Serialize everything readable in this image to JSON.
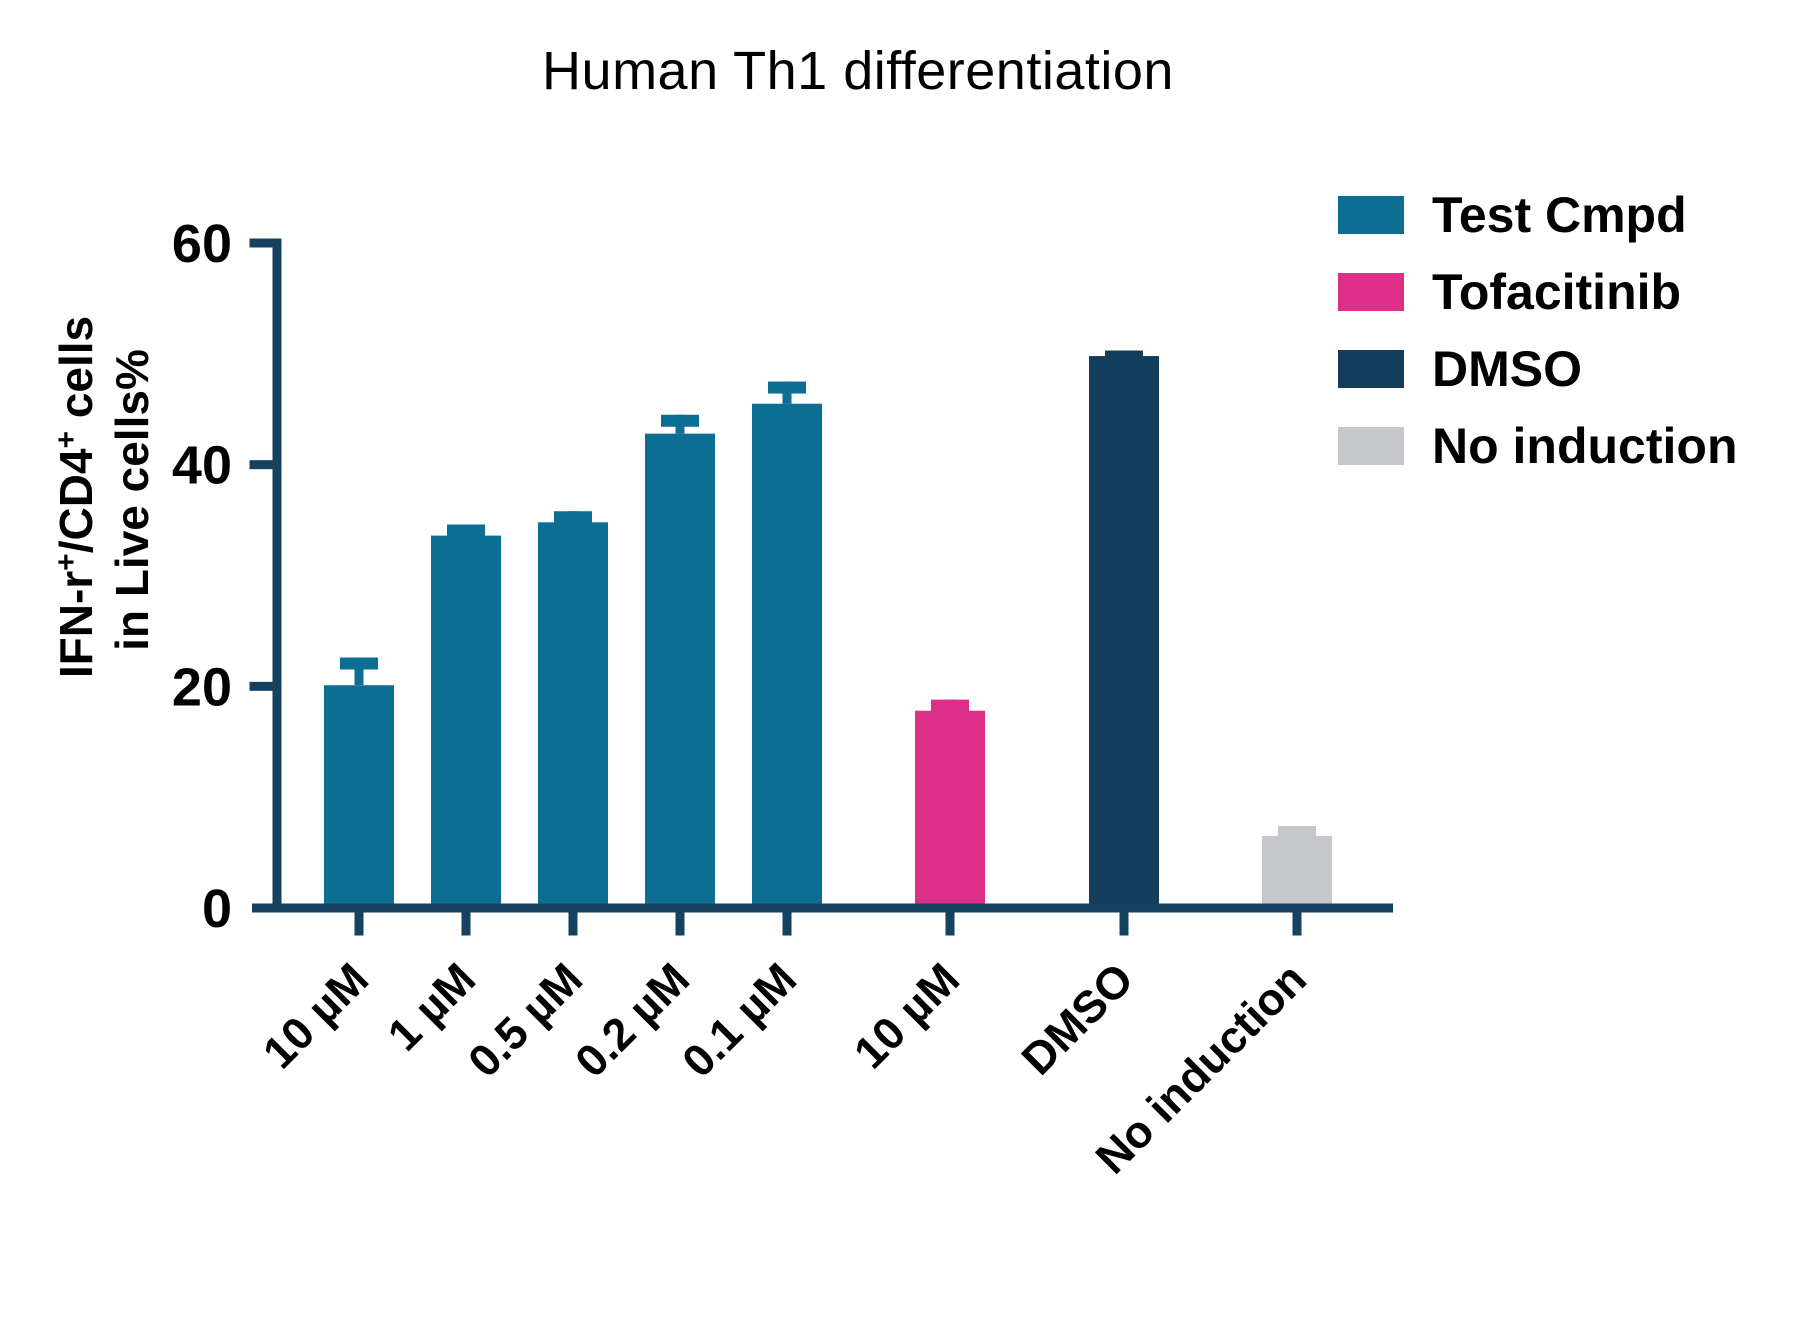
{
  "figure": {
    "title": "Human Th1 differentiation"
  },
  "chart_data": {
    "type": "bar",
    "title": "Human Th1 differentiation",
    "ylabel_line1": "IFN-r+/CD4+ cells",
    "ylabel_line1_parts": [
      {
        "text": "IFN-r"
      },
      {
        "text": "+",
        "sup": true
      },
      {
        "text": "/CD4"
      },
      {
        "text": "+",
        "sup": true
      },
      {
        "text": " cells"
      }
    ],
    "ylabel_line2": "in Live cells%",
    "xlabel": "",
    "ylim": [
      0,
      60
    ],
    "yticks": [
      0,
      20,
      40,
      60
    ],
    "grid": false,
    "legend_position": "top-right",
    "categories": [
      "10 µM",
      "1 µM",
      "0.5 µM",
      "0.2 µM",
      "0.1 µM",
      "10 µM",
      "DMSO",
      "No induction"
    ],
    "series_of_bar": [
      "Test Cmpd",
      "Test Cmpd",
      "Test Cmpd",
      "Test Cmpd",
      "Test Cmpd",
      "Tofacitinib",
      "DMSO",
      "No induction"
    ],
    "values": [
      20.1,
      33.6,
      34.8,
      42.8,
      45.5,
      17.8,
      49.8,
      6.5
    ],
    "errors_plus": [
      2.5,
      1.0,
      1.0,
      1.7,
      2.0,
      1.0,
      0.5,
      0.9
    ],
    "legend": [
      {
        "label": "Test Cmpd",
        "color": "#0d6e94"
      },
      {
        "label": "Tofacitinib",
        "color": "#dd2f87"
      },
      {
        "label": "DMSO",
        "color": "#123e5c"
      },
      {
        "label": "No induction",
        "color": "#c6c7ca"
      }
    ],
    "axis_color": "#15425f",
    "text_color": "#000000",
    "background_color": "#ffffff"
  }
}
